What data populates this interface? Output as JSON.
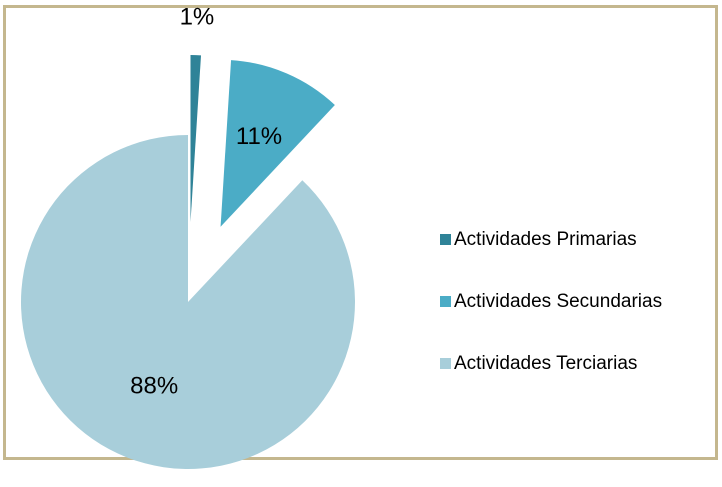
{
  "chart_data": {
    "type": "pie",
    "categories": [
      "Actividades Primarias",
      "Actividades Secundarias",
      "Actividades Terciarias"
    ],
    "values": [
      1,
      11,
      88
    ],
    "value_labels": [
      "1%",
      "11%",
      "88%"
    ],
    "colors": [
      "#2f8398",
      "#4bacc6",
      "#a8ceda"
    ],
    "legend": "right"
  }
}
